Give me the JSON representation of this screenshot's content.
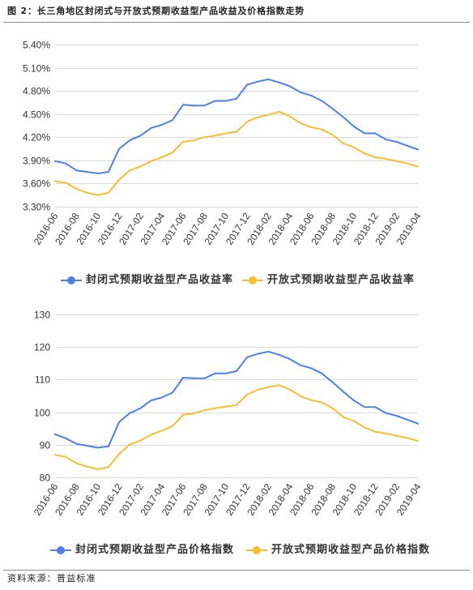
{
  "figure": {
    "caption": "图 2：长三角地区封闭式与开放式预期收益型产品收益及价格指数走势",
    "source": "资料来源：普益标准"
  },
  "chart_data": [
    {
      "type": "line",
      "grid": true,
      "legend_position": "bottom",
      "ylim": [
        3.3,
        5.4
      ],
      "y_tick_labels": [
        "3.30%",
        "3.60%",
        "3.90%",
        "4.20%",
        "4.50%",
        "4.80%",
        "5.10%",
        "5.40%"
      ],
      "x_tick_labels": [
        "2016-06",
        "2016-08",
        "2016-10",
        "2016-12",
        "2017-02",
        "2017-04",
        "2017-06",
        "2017-08",
        "2017-10",
        "2017-12",
        "2018-02",
        "2018-04",
        "2018-06",
        "2018-08",
        "2018-10",
        "2018-12",
        "2019-02",
        "2019-04"
      ],
      "series": [
        {
          "name": "封闭式预期收益型产品收益率",
          "color": "#4e80e9",
          "values": [
            3.89,
            3.86,
            3.77,
            3.75,
            3.73,
            3.75,
            4.05,
            4.16,
            4.22,
            4.32,
            4.36,
            4.42,
            4.62,
            4.61,
            4.61,
            4.67,
            4.67,
            4.7,
            4.88,
            4.92,
            4.95,
            4.91,
            4.86,
            4.78,
            4.74,
            4.67,
            4.57,
            4.46,
            4.34,
            4.25,
            4.25,
            4.17,
            4.14,
            4.09,
            4.04
          ]
        },
        {
          "name": "开放式预期收益型产品收益率",
          "color": "#f6bf31",
          "values": [
            3.63,
            3.61,
            3.53,
            3.48,
            3.45,
            3.48,
            3.65,
            3.77,
            3.82,
            3.89,
            3.94,
            4.0,
            4.14,
            4.16,
            4.2,
            4.22,
            4.25,
            4.27,
            4.4,
            4.46,
            4.49,
            4.53,
            4.47,
            4.38,
            4.33,
            4.3,
            4.23,
            4.12,
            4.07,
            3.99,
            3.94,
            3.92,
            3.89,
            3.86,
            3.82
          ]
        }
      ]
    },
    {
      "type": "line",
      "grid": true,
      "legend_position": "bottom",
      "ylim": [
        80,
        130
      ],
      "y_tick_labels": [
        "80",
        "90",
        "100",
        "110",
        "120",
        "130"
      ],
      "x_tick_labels": [
        "2016-06",
        "2016-08",
        "2016-10",
        "2016-12",
        "2017-02",
        "2017-04",
        "2017-06",
        "2017-08",
        "2017-10",
        "2017-12",
        "2018-02",
        "2018-04",
        "2018-06",
        "2018-08",
        "2018-10",
        "2018-12",
        "2019-02",
        "2019-04"
      ],
      "series": [
        {
          "name": "封闭式预期收益型产品价格指数",
          "color": "#4e80e9",
          "values": [
            93.2,
            92.0,
            90.3,
            89.7,
            89.1,
            89.5,
            97.0,
            99.7,
            101.2,
            103.6,
            104.5,
            106.0,
            110.6,
            110.4,
            110.4,
            111.9,
            111.9,
            112.6,
            116.9,
            117.9,
            118.6,
            117.6,
            116.3,
            114.4,
            113.5,
            111.9,
            109.2,
            106.3,
            103.6,
            101.6,
            101.6,
            99.7,
            98.9,
            97.7,
            96.5
          ]
        },
        {
          "name": "开放式预期收益型产品价格指数",
          "color": "#f6bf31",
          "values": [
            86.9,
            86.3,
            84.3,
            83.3,
            82.5,
            83.1,
            87.2,
            90.1,
            91.3,
            93.1,
            94.3,
            95.7,
            99.2,
            99.6,
            100.6,
            101.2,
            101.7,
            102.2,
            105.4,
            106.9,
            107.7,
            108.3,
            107.0,
            104.9,
            103.7,
            103.0,
            101.2,
            98.5,
            97.3,
            95.3,
            94.0,
            93.5,
            92.7,
            92.1,
            91.2
          ]
        }
      ]
    }
  ]
}
